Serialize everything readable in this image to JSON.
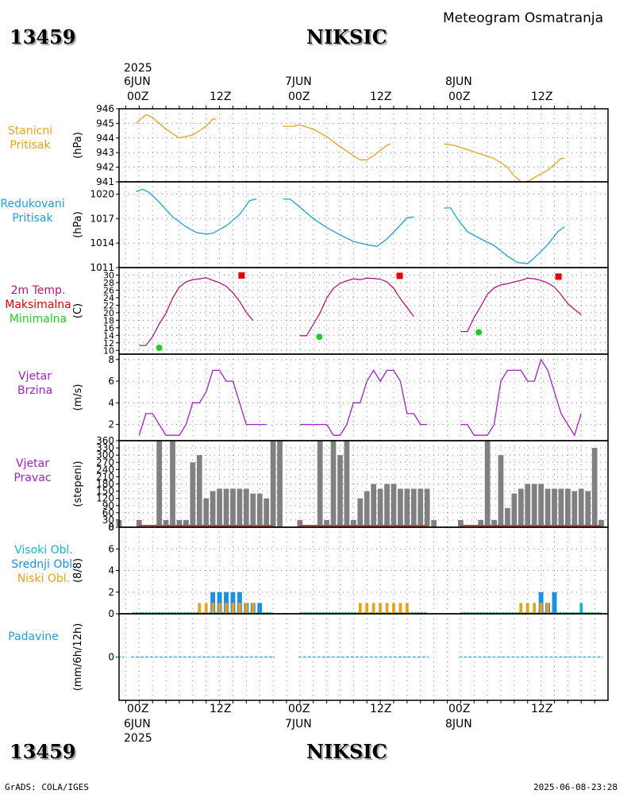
{
  "header": {
    "station_id": "13459",
    "station_name": "NIKSIC",
    "product_title": "Meteogram Osmatranja"
  },
  "time_axis": {
    "top_year": "2025",
    "bottom_year": "2025",
    "day_labels": [
      "6JUN",
      "7JUN",
      "8JUN"
    ],
    "hour_labels": [
      "00Z",
      "12Z",
      "00Z",
      "12Z",
      "00Z",
      "12Z"
    ]
  },
  "panels": {
    "pressure": {
      "label1": "Stanicni",
      "label2": "Pritisak",
      "unit": "(hPa)",
      "color": "#e8a020"
    },
    "redpressure": {
      "label1": "Redukovani",
      "label2": "Pritisak",
      "unit": "(hPa)",
      "color": "#1ea0d8"
    },
    "temp": {
      "label1": "2m Temp.",
      "label2": "Maksimalna",
      "label3": "Minimalna",
      "unit": "(C)",
      "color": "#b0187a",
      "max_color": "#e00000",
      "min_color": "#20cc20"
    },
    "wind": {
      "label1": "Vjetar",
      "label2": "Brzina",
      "unit": "(m/s)",
      "color": "#a020c0"
    },
    "winddir": {
      "label1": "Vjetar",
      "label2": "Pravac",
      "unit": "(stepeni)",
      "color": "#a020c0",
      "bar_color": "#808080",
      "base_color": "#c04040"
    },
    "clouds": {
      "label1": "Visoki Obl.",
      "label2": "Srednji Obl.",
      "label3": "Niski Obl.",
      "unit": "(8/8)",
      "high_color": "#10b8c8",
      "mid_color": "#1e90e0",
      "low_color": "#e8a020",
      "zero_color": "#20a040"
    },
    "precip": {
      "label1": "Padavine",
      "unit": "(mm/6h/12h)",
      "color": "#1ea0d8"
    }
  },
  "footer": {
    "left": "GrADS: COLA/IGES",
    "right": "2025-06-08-23:28"
  },
  "chart_data": [
    {
      "type": "line",
      "title": "Stanicni Pritisak",
      "ylabel": "(hPa)",
      "ylim": [
        941,
        946
      ],
      "yticks": [
        941,
        942,
        943,
        944,
        945,
        946
      ],
      "segments": [
        [
          [
            2.5,
            945.0
          ],
          [
            3,
            945.2
          ],
          [
            4,
            945.6
          ],
          [
            5,
            945.4
          ],
          [
            6,
            945.0
          ],
          [
            7,
            944.6
          ],
          [
            9,
            944.0
          ],
          [
            11,
            944.2
          ],
          [
            13,
            944.8
          ],
          [
            14,
            945.3
          ],
          [
            14.5,
            945.3
          ]
        ],
        [
          [
            24.5,
            944.8
          ],
          [
            26,
            944.8
          ],
          [
            27,
            944.9
          ],
          [
            29,
            944.6
          ],
          [
            31,
            944.1
          ],
          [
            33,
            943.4
          ],
          [
            35,
            942.8
          ],
          [
            36,
            942.5
          ],
          [
            37,
            942.5
          ],
          [
            38,
            942.8
          ],
          [
            40,
            943.5
          ],
          [
            40.5,
            943.6
          ]
        ],
        [
          [
            48.5,
            943.6
          ],
          [
            50,
            943.5
          ],
          [
            52,
            943.2
          ],
          [
            54,
            942.9
          ],
          [
            56,
            942.6
          ],
          [
            58,
            942.0
          ],
          [
            59,
            941.4
          ],
          [
            60,
            941.0
          ],
          [
            61,
            941.0
          ],
          [
            62,
            941.3
          ],
          [
            64,
            941.8
          ],
          [
            66,
            942.6
          ],
          [
            66.5,
            942.6
          ]
        ]
      ]
    },
    {
      "type": "line",
      "title": "Redukovani Pritisak",
      "ylabel": "(hPa)",
      "ylim": [
        1011,
        1021.5
      ],
      "yticks": [
        1011,
        1014,
        1017,
        1020
      ],
      "segments": [
        [
          [
            2.5,
            1020.3
          ],
          [
            3.5,
            1020.6
          ],
          [
            4.5,
            1020.2
          ],
          [
            6,
            1019.0
          ],
          [
            8,
            1017.2
          ],
          [
            10,
            1016.0
          ],
          [
            11.5,
            1015.3
          ],
          [
            13,
            1015.1
          ],
          [
            14,
            1015.2
          ],
          [
            16,
            1016.1
          ],
          [
            18,
            1017.5
          ],
          [
            19.5,
            1019.2
          ],
          [
            20.5,
            1019.4
          ]
        ],
        [
          [
            24.5,
            1019.4
          ],
          [
            25.5,
            1019.4
          ],
          [
            27,
            1018.4
          ],
          [
            29,
            1017.0
          ],
          [
            31,
            1015.9
          ],
          [
            33,
            1015.0
          ],
          [
            35,
            1014.2
          ],
          [
            37,
            1013.8
          ],
          [
            38.5,
            1013.6
          ],
          [
            40,
            1014.5
          ],
          [
            42,
            1016.2
          ],
          [
            43,
            1017.1
          ],
          [
            44,
            1017.2
          ]
        ],
        [
          [
            48.5,
            1018.3
          ],
          [
            49.5,
            1018.3
          ],
          [
            50.5,
            1017.0
          ],
          [
            52,
            1015.4
          ],
          [
            54,
            1014.5
          ],
          [
            56,
            1013.7
          ],
          [
            58,
            1012.4
          ],
          [
            59.5,
            1011.6
          ],
          [
            61,
            1011.5
          ],
          [
            62,
            1012.2
          ],
          [
            64,
            1013.8
          ],
          [
            65.5,
            1015.4
          ],
          [
            66.5,
            1016.0
          ]
        ]
      ]
    },
    {
      "type": "line",
      "title": "2m Temp. Maksimalna Minimalna",
      "ylabel": "(C)",
      "ylim": [
        9,
        32
      ],
      "yticks": [
        10,
        12,
        14,
        16,
        18,
        20,
        22,
        24,
        26,
        28,
        30
      ],
      "segments": [
        [
          [
            3,
            11.3
          ],
          [
            4,
            11.3
          ],
          [
            5,
            13.6
          ],
          [
            6,
            17.0
          ],
          [
            7,
            19.9
          ],
          [
            8,
            23.9
          ],
          [
            9,
            26.8
          ],
          [
            10,
            28.2
          ],
          [
            11,
            28.8
          ],
          [
            12,
            29.0
          ],
          [
            13,
            29.3
          ],
          [
            14,
            28.6
          ],
          [
            15,
            28.0
          ],
          [
            16,
            27.0
          ],
          [
            17,
            25.3
          ],
          [
            18,
            23.0
          ],
          [
            19,
            20.1
          ],
          [
            20,
            17.9
          ]
        ],
        [
          [
            27,
            13.9
          ],
          [
            28,
            13.9
          ],
          [
            29,
            16.9
          ],
          [
            30,
            19.9
          ],
          [
            31,
            23.9
          ],
          [
            32,
            26.5
          ],
          [
            33,
            27.8
          ],
          [
            34,
            28.5
          ],
          [
            35,
            29.0
          ],
          [
            36,
            28.8
          ],
          [
            37,
            29.2
          ],
          [
            38,
            29.1
          ],
          [
            39,
            28.9
          ],
          [
            40,
            28.2
          ],
          [
            41,
            26.5
          ],
          [
            42,
            23.7
          ],
          [
            43,
            21.4
          ],
          [
            44,
            19.0
          ]
        ],
        [
          [
            51,
            15.0
          ],
          [
            52,
            15.0
          ],
          [
            53,
            18.7
          ],
          [
            54,
            21.7
          ],
          [
            55,
            24.9
          ],
          [
            56,
            26.6
          ],
          [
            57,
            27.4
          ],
          [
            58,
            27.7
          ],
          [
            59,
            28.2
          ],
          [
            60,
            28.6
          ],
          [
            61,
            29.2
          ],
          [
            62,
            29.0
          ],
          [
            63,
            28.6
          ],
          [
            64,
            27.9
          ],
          [
            65,
            26.8
          ],
          [
            66,
            24.8
          ],
          [
            67,
            22.4
          ],
          [
            68,
            20.9
          ],
          [
            69,
            19.5
          ]
        ]
      ],
      "maxima": [
        [
          18.3,
          29.9
        ],
        [
          41.9,
          29.8
        ],
        [
          65.6,
          29.6
        ]
      ],
      "minima": [
        [
          6.0,
          10.7
        ],
        [
          29.9,
          13.6
        ],
        [
          53.7,
          14.8
        ]
      ]
    },
    {
      "type": "line",
      "title": "Vjetar Brzina",
      "ylabel": "(m/s)",
      "ylim": [
        0.5,
        8.5
      ],
      "yticks": [
        2,
        4,
        6,
        8
      ],
      "segments": [
        [
          [
            3,
            1
          ],
          [
            4,
            3
          ],
          [
            5,
            3
          ],
          [
            6,
            2
          ],
          [
            7,
            1
          ],
          [
            8,
            1
          ],
          [
            9,
            1
          ],
          [
            10,
            2
          ],
          [
            11,
            4
          ],
          [
            12,
            4
          ],
          [
            13,
            5
          ],
          [
            14,
            7
          ],
          [
            15,
            7
          ],
          [
            16,
            6
          ],
          [
            17,
            6
          ],
          [
            18,
            4
          ],
          [
            19,
            2
          ],
          [
            20,
            2
          ],
          [
            21,
            2
          ],
          [
            22,
            2
          ]
        ],
        [
          [
            27,
            2
          ],
          [
            28,
            2
          ],
          [
            29,
            2
          ],
          [
            30,
            2
          ],
          [
            31,
            2
          ],
          [
            32,
            1
          ],
          [
            33,
            1
          ],
          [
            34,
            2
          ],
          [
            35,
            4
          ],
          [
            36,
            4
          ],
          [
            37,
            6
          ],
          [
            38,
            7
          ],
          [
            39,
            6
          ],
          [
            40,
            7
          ],
          [
            41,
            7
          ],
          [
            42,
            6
          ],
          [
            43,
            3
          ],
          [
            44,
            3
          ],
          [
            45,
            2
          ],
          [
            46,
            2
          ]
        ],
        [
          [
            51,
            2
          ],
          [
            52,
            2
          ],
          [
            53,
            1
          ],
          [
            54,
            1
          ],
          [
            55,
            1
          ],
          [
            56,
            2
          ],
          [
            57,
            6
          ],
          [
            58,
            7
          ],
          [
            59,
            7
          ],
          [
            60,
            7
          ],
          [
            61,
            6
          ],
          [
            62,
            6
          ],
          [
            63,
            8
          ],
          [
            64,
            7
          ],
          [
            65,
            5
          ],
          [
            66,
            3
          ],
          [
            67,
            2
          ],
          [
            68,
            1
          ],
          [
            69,
            3
          ]
        ]
      ]
    },
    {
      "type": "bar",
      "title": "Vjetar Pravac",
      "ylabel": "(stepeni)",
      "ylim": [
        0,
        360
      ],
      "yticks": [
        0,
        30,
        60,
        90,
        120,
        150,
        180,
        210,
        240,
        270,
        300,
        330,
        360
      ],
      "x": [
        0,
        3,
        6,
        7,
        8,
        9,
        10,
        11,
        12,
        13,
        14,
        15,
        16,
        17,
        18,
        19,
        20,
        21,
        22,
        23,
        24,
        27,
        30,
        31,
        32,
        33,
        34,
        35,
        36,
        37,
        38,
        39,
        40,
        41,
        42,
        43,
        44,
        45,
        46,
        47,
        51,
        54,
        55,
        56,
        57,
        58,
        59,
        60,
        61,
        62,
        63,
        64,
        65,
        66,
        67,
        68,
        69,
        70,
        71,
        72
      ],
      "values": [
        30,
        30,
        360,
        30,
        360,
        30,
        30,
        270,
        300,
        120,
        150,
        160,
        160,
        160,
        160,
        160,
        140,
        140,
        120,
        360,
        360,
        30,
        360,
        30,
        360,
        300,
        360,
        30,
        120,
        150,
        180,
        160,
        180,
        180,
        160,
        160,
        160,
        160,
        160,
        30,
        30,
        30,
        360,
        30,
        300,
        80,
        140,
        160,
        180,
        180,
        180,
        160,
        160,
        160,
        160,
        150,
        160,
        150,
        330,
        30
      ]
    },
    {
      "type": "bar",
      "title": "Visoki Obl. Srednji Obl. Niski Obl.",
      "ylabel": "(8/8)",
      "ylim": [
        0,
        8
      ],
      "yticks": [
        0,
        2,
        4,
        6,
        8
      ],
      "low": [
        [
          12,
          1
        ],
        [
          13,
          1
        ],
        [
          14,
          1
        ],
        [
          15,
          1
        ],
        [
          16,
          1
        ],
        [
          17,
          1
        ],
        [
          18,
          1
        ],
        [
          19,
          1
        ],
        [
          20,
          1
        ],
        [
          36,
          1
        ],
        [
          37,
          1
        ],
        [
          38,
          1
        ],
        [
          39,
          1
        ],
        [
          40,
          1
        ],
        [
          41,
          1
        ],
        [
          42,
          1
        ],
        [
          43,
          1
        ],
        [
          60,
          1
        ],
        [
          61,
          1
        ],
        [
          62,
          1
        ],
        [
          63,
          1
        ],
        [
          64,
          1
        ]
      ],
      "mid": [
        [
          14,
          2
        ],
        [
          15,
          2
        ],
        [
          16,
          2
        ],
        [
          17,
          2
        ],
        [
          18,
          2
        ],
        [
          19,
          1
        ],
        [
          20,
          1
        ],
        [
          21,
          1
        ],
        [
          63,
          2
        ],
        [
          64,
          1
        ],
        [
          65,
          2
        ]
      ],
      "high": [
        [
          69,
          1
        ]
      ]
    },
    {
      "type": "line",
      "title": "Padavine",
      "ylabel": "(mm/6h/12h)",
      "ylim": [
        -4,
        4
      ],
      "yticks": [
        0
      ],
      "values": "all 0"
    }
  ]
}
